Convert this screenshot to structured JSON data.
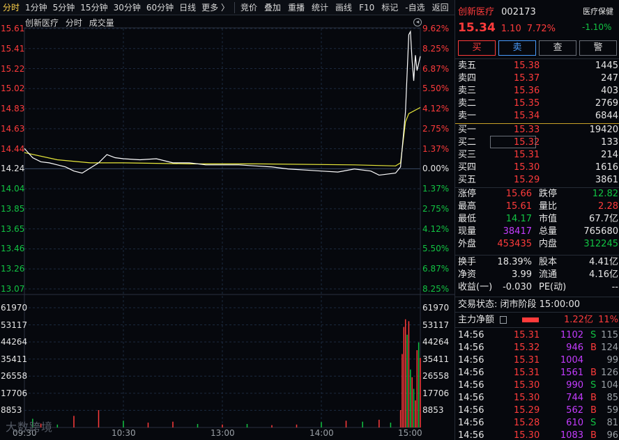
{
  "toolbar": {
    "tabs": [
      "分时",
      "1分钟",
      "5分钟",
      "15分钟",
      "30分钟",
      "60分钟",
      "日线",
      "更多 〉"
    ],
    "buttons": [
      "竞价",
      "叠加",
      "重播",
      "统计",
      "画线",
      "F10",
      "标记",
      "-自选",
      "返回"
    ]
  },
  "chart": {
    "header": {
      "name": "创新医疗",
      "mode": "分时",
      "volume": "成交量"
    },
    "price_labels": [
      "15.61",
      "15.41",
      "15.22",
      "15.02",
      "14.83",
      "14.63",
      "14.44",
      "14.24",
      "14.04",
      "13.85",
      "13.65",
      "13.46",
      "13.26",
      "13.07"
    ],
    "pct_labels": [
      "9.62%",
      "8.25%",
      "6.87%",
      "5.50%",
      "4.12%",
      "2.75%",
      "1.37%",
      "0.00%",
      "1.37%",
      "2.75%",
      "4.12%",
      "5.50%",
      "6.87%",
      "8.25%"
    ],
    "volume_labels": [
      "61970",
      "53117",
      "44264",
      "35411",
      "26558",
      "17706",
      "8853"
    ],
    "time_labels": [
      "09:30",
      "10:30",
      "13:00",
      "14:00",
      "15:00"
    ],
    "watermark": "大数跨境",
    "colors": {
      "price_line": "#ffffff",
      "avg_line": "#e8e83a",
      "up": "#ff3b3b",
      "down": "#12c443",
      "grid": "#1f3a5a"
    }
  },
  "chart_data": {
    "type": "line",
    "prev_close": 14.24,
    "x_range": [
      "09:30",
      "15:00"
    ],
    "ylim": [
      13.07,
      15.61
    ],
    "price_series": [
      [
        0,
        14.44
      ],
      [
        5,
        14.35
      ],
      [
        10,
        14.31
      ],
      [
        15,
        14.3
      ],
      [
        20,
        14.28
      ],
      [
        25,
        14.26
      ],
      [
        30,
        14.22
      ],
      [
        35,
        14.2
      ],
      [
        40,
        14.25
      ],
      [
        45,
        14.3
      ],
      [
        50,
        14.38
      ],
      [
        55,
        14.35
      ],
      [
        60,
        14.34
      ],
      [
        70,
        14.33
      ],
      [
        80,
        14.34
      ],
      [
        90,
        14.3
      ],
      [
        100,
        14.3
      ],
      [
        110,
        14.28
      ],
      [
        120,
        14.28
      ],
      [
        130,
        14.28
      ],
      [
        140,
        14.27
      ],
      [
        150,
        14.26
      ],
      [
        160,
        14.24
      ],
      [
        170,
        14.23
      ],
      [
        180,
        14.22
      ],
      [
        190,
        14.21
      ],
      [
        200,
        14.24
      ],
      [
        210,
        14.22
      ],
      [
        215,
        14.18
      ],
      [
        225,
        14.2
      ],
      [
        228,
        14.26
      ],
      [
        231,
        14.8
      ],
      [
        233,
        15.55
      ],
      [
        234,
        15.58
      ],
      [
        235,
        15.3
      ],
      [
        236,
        15.1
      ],
      [
        237,
        15.35
      ],
      [
        238,
        15.2
      ],
      [
        240,
        15.34
      ]
    ],
    "avg_series": [
      [
        0,
        14.4
      ],
      [
        20,
        14.33
      ],
      [
        40,
        14.3
      ],
      [
        60,
        14.3
      ],
      [
        100,
        14.29
      ],
      [
        140,
        14.29
      ],
      [
        200,
        14.28
      ],
      [
        225,
        14.27
      ],
      [
        228,
        14.3
      ],
      [
        231,
        14.7
      ],
      [
        233,
        14.78
      ],
      [
        240,
        14.84
      ]
    ],
    "volume_ylim": [
      0,
      61970
    ],
    "volume_bars": [
      [
        5,
        4500,
        "down"
      ],
      [
        10,
        2000,
        "up"
      ],
      [
        20,
        1500,
        "down"
      ],
      [
        30,
        6000,
        "up"
      ],
      [
        45,
        9000,
        "up"
      ],
      [
        60,
        3500,
        "down"
      ],
      [
        75,
        2500,
        "up"
      ],
      [
        90,
        3000,
        "up"
      ],
      [
        105,
        1800,
        "down"
      ],
      [
        120,
        1500,
        "up"
      ],
      [
        135,
        1800,
        "down"
      ],
      [
        150,
        1200,
        "up"
      ],
      [
        165,
        1500,
        "up"
      ],
      [
        180,
        2800,
        "down"
      ],
      [
        195,
        3500,
        "up"
      ],
      [
        205,
        3000,
        "down"
      ],
      [
        215,
        4000,
        "up"
      ],
      [
        222,
        2500,
        "down"
      ],
      [
        228,
        9000,
        "up"
      ],
      [
        229,
        38000,
        "up"
      ],
      [
        230,
        52000,
        "up"
      ],
      [
        231,
        56000,
        "up"
      ],
      [
        232,
        48000,
        "down"
      ],
      [
        233,
        55000,
        "up"
      ],
      [
        234,
        30000,
        "down"
      ],
      [
        235,
        26000,
        "up"
      ],
      [
        236,
        20000,
        "down"
      ],
      [
        237,
        14000,
        "up"
      ],
      [
        238,
        40000,
        "up"
      ],
      [
        239,
        44000,
        "down"
      ],
      [
        240,
        36000,
        "up"
      ]
    ]
  },
  "quote": {
    "name": "创新医疗",
    "code": "002173",
    "sector": "医疗保健",
    "price": "15.34",
    "change": "1.10",
    "change_pct": "7.72%",
    "sector_change": "-1.10%",
    "actions": [
      "买",
      "卖",
      "查",
      "警"
    ],
    "asks": [
      {
        "label": "卖五",
        "price": "15.38",
        "vol": "1445"
      },
      {
        "label": "卖四",
        "price": "15.37",
        "vol": "247"
      },
      {
        "label": "卖三",
        "price": "15.36",
        "vol": "403"
      },
      {
        "label": "卖二",
        "price": "15.35",
        "vol": "2769"
      },
      {
        "label": "卖一",
        "price": "15.34",
        "vol": "6844"
      }
    ],
    "bids": [
      {
        "label": "买一",
        "price": "15.33",
        "vol": "19420"
      },
      {
        "label": "买二",
        "price": "15.32",
        "vol": "133"
      },
      {
        "label": "买三",
        "price": "15.31",
        "vol": "214"
      },
      {
        "label": "买四",
        "price": "15.30",
        "vol": "1616"
      },
      {
        "label": "买五",
        "price": "15.29",
        "vol": "3861"
      }
    ],
    "stats1": [
      {
        "k1": "涨停",
        "v1": "15.66",
        "c1": "red",
        "k2": "跌停",
        "v2": "12.82",
        "c2": "green"
      },
      {
        "k1": "最高",
        "v1": "15.61",
        "c1": "red",
        "k2": "量比",
        "v2": "2.28",
        "c2": "red"
      },
      {
        "k1": "最低",
        "v1": "14.17",
        "c1": "green",
        "k2": "市值",
        "v2": "67.7亿",
        "c2": "white"
      },
      {
        "k1": "现量",
        "v1": "38417",
        "c1": "purple",
        "k2": "总量",
        "v2": "765680",
        "c2": "white"
      },
      {
        "k1": "外盘",
        "v1": "453435",
        "c1": "red",
        "k2": "内盘",
        "v2": "312245",
        "c2": "green"
      }
    ],
    "stats2": [
      {
        "k1": "换手",
        "v1": "18.39%",
        "k2": "股本",
        "v2": "4.41亿"
      },
      {
        "k1": "净资",
        "v1": "3.99",
        "k2": "流通",
        "v2": "4.16亿"
      },
      {
        "k1": "收益(一)",
        "v1": "-0.030",
        "k2": "PE(动)",
        "v2": "--"
      }
    ],
    "trade_status": "交易状态: 闭市阶段 15:00:00",
    "main_flow": {
      "label": "主力净额",
      "value": "1.22亿",
      "pct": "11%"
    },
    "ticks": [
      {
        "time": "14:56",
        "price": "15.31",
        "vol": "1102",
        "side": "S",
        "n": "115"
      },
      {
        "time": "14:56",
        "price": "15.32",
        "vol": "946",
        "side": "B",
        "n": "124"
      },
      {
        "time": "14:56",
        "price": "15.31",
        "vol": "1004",
        "side": "",
        "n": "99"
      },
      {
        "time": "14:56",
        "price": "15.31",
        "vol": "1561",
        "side": "B",
        "n": "126"
      },
      {
        "time": "14:56",
        "price": "15.30",
        "vol": "990",
        "side": "S",
        "n": "104"
      },
      {
        "time": "14:56",
        "price": "15.30",
        "vol": "744",
        "side": "B",
        "n": "85"
      },
      {
        "time": "14:56",
        "price": "15.29",
        "vol": "562",
        "side": "B",
        "n": "59"
      },
      {
        "time": "14:56",
        "price": "15.28",
        "vol": "610",
        "side": "S",
        "n": "81"
      },
      {
        "time": "14:56",
        "price": "15.30",
        "vol": "1083",
        "side": "B",
        "n": "96"
      }
    ]
  }
}
